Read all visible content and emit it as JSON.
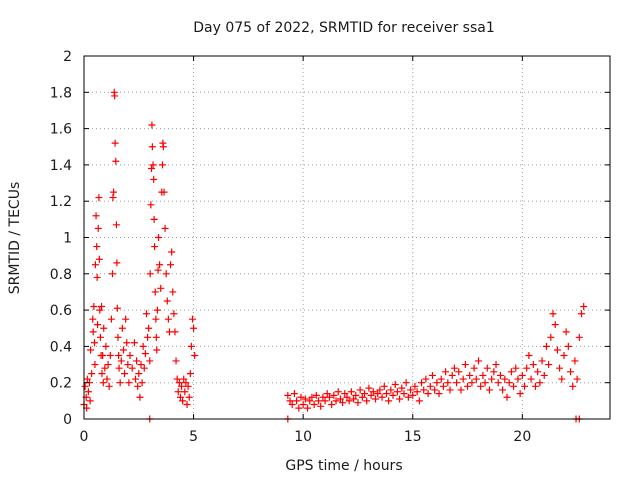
{
  "chart_data": {
    "type": "scatter",
    "title": "Day 075 of 2022, SRMTID for receiver ssa1",
    "xlabel": "GPS time / hours",
    "ylabel": "SRMTID / TECUs",
    "xlim": [
      0,
      24
    ],
    "ylim": [
      0,
      2
    ],
    "xticks": [
      0,
      5,
      10,
      15,
      20
    ],
    "yticks": [
      0,
      0.2,
      0.4,
      0.6,
      0.8,
      1,
      1.2,
      1.4,
      1.6,
      1.8,
      2
    ],
    "ytick_labels": [
      "0",
      "0.2",
      "0.4",
      "0.6",
      "0.8",
      "1",
      "1.2",
      "1.4",
      "1.6",
      "1.8",
      "2"
    ],
    "grid": true,
    "colors": {
      "series": "#ff0000",
      "grid": "#a0a0a0",
      "axis": "#000000"
    },
    "series": [
      {
        "name": "SRMTID",
        "marker": "plus",
        "points": [
          [
            0.0,
            0.08
          ],
          [
            0.05,
            0.18
          ],
          [
            0.1,
            0.12
          ],
          [
            0.12,
            0.06
          ],
          [
            0.15,
            0.22
          ],
          [
            0.2,
            0.15
          ],
          [
            0.25,
            0.2
          ],
          [
            0.28,
            0.1
          ],
          [
            0.3,
            0.38
          ],
          [
            0.35,
            0.25
          ],
          [
            0.4,
            0.55
          ],
          [
            0.42,
            0.48
          ],
          [
            0.45,
            0.62
          ],
          [
            0.48,
            0.42
          ],
          [
            0.5,
            0.3
          ],
          [
            0.52,
            0.85
          ],
          [
            0.55,
            1.12
          ],
          [
            0.58,
            0.95
          ],
          [
            0.6,
            0.78
          ],
          [
            0.62,
            0.52
          ],
          [
            0.65,
            1.05
          ],
          [
            0.68,
            1.22
          ],
          [
            0.7,
            0.88
          ],
          [
            0.72,
            0.6
          ],
          [
            0.75,
            0.45
          ],
          [
            0.78,
            0.35
          ],
          [
            0.8,
            0.62
          ],
          [
            0.82,
            0.25
          ],
          [
            0.85,
            0.35
          ],
          [
            0.88,
            0.2
          ],
          [
            0.9,
            0.5
          ],
          [
            0.95,
            0.28
          ],
          [
            1.0,
            0.4
          ],
          [
            1.05,
            0.22
          ],
          [
            1.1,
            0.3
          ],
          [
            1.15,
            0.18
          ],
          [
            1.2,
            0.35
          ],
          [
            1.25,
            0.55
          ],
          [
            1.3,
            0.8
          ],
          [
            1.32,
            1.22
          ],
          [
            1.35,
            1.25
          ],
          [
            1.38,
            1.8
          ],
          [
            1.4,
            1.78
          ],
          [
            1.42,
            1.52
          ],
          [
            1.45,
            1.42
          ],
          [
            1.48,
            1.07
          ],
          [
            1.5,
            0.86
          ],
          [
            1.52,
            0.61
          ],
          [
            1.55,
            0.45
          ],
          [
            1.58,
            0.35
          ],
          [
            1.6,
            0.28
          ],
          [
            1.65,
            0.2
          ],
          [
            1.7,
            0.32
          ],
          [
            1.75,
            0.5
          ],
          [
            1.8,
            0.38
          ],
          [
            1.85,
            0.25
          ],
          [
            1.9,
            0.55
          ],
          [
            1.95,
            0.42
          ],
          [
            2.0,
            0.3
          ],
          [
            2.05,
            0.2
          ],
          [
            2.1,
            0.35
          ],
          [
            2.2,
            0.28
          ],
          [
            2.3,
            0.42
          ],
          [
            2.35,
            0.22
          ],
          [
            2.4,
            0.32
          ],
          [
            2.45,
            0.18
          ],
          [
            2.5,
            0.25
          ],
          [
            2.55,
            0.12
          ],
          [
            2.6,
            0.3
          ],
          [
            2.65,
            0.2
          ],
          [
            2.7,
            0.4
          ],
          [
            2.75,
            0.28
          ],
          [
            2.8,
            0.36
          ],
          [
            2.85,
            0.58
          ],
          [
            2.9,
            0.45
          ],
          [
            2.95,
            0.5
          ],
          [
            3.0,
            0.32
          ],
          [
            3.02,
            0.8
          ],
          [
            3.05,
            1.18
          ],
          [
            3.08,
            1.38
          ],
          [
            3.1,
            1.62
          ],
          [
            3.12,
            1.5
          ],
          [
            3.15,
            1.4
          ],
          [
            3.18,
            1.32
          ],
          [
            3.2,
            1.1
          ],
          [
            3.22,
            0.95
          ],
          [
            3.25,
            0.7
          ],
          [
            3.28,
            0.55
          ],
          [
            3.3,
            0.45
          ],
          [
            3.32,
            0.38
          ],
          [
            3.35,
            0.6
          ],
          [
            3.38,
            0.82
          ],
          [
            3.4,
            1.0
          ],
          [
            3.45,
            0.85
          ],
          [
            3.5,
            0.72
          ],
          [
            3.55,
            1.25
          ],
          [
            3.58,
            1.4
          ],
          [
            3.6,
            1.52
          ],
          [
            3.62,
            1.5
          ],
          [
            3.65,
            1.25
          ],
          [
            3.7,
            1.05
          ],
          [
            3.75,
            0.8
          ],
          [
            3.8,
            0.65
          ],
          [
            3.85,
            0.55
          ],
          [
            3.9,
            0.48
          ],
          [
            3.95,
            0.85
          ],
          [
            4.0,
            0.92
          ],
          [
            4.05,
            0.7
          ],
          [
            4.1,
            0.58
          ],
          [
            4.15,
            0.48
          ],
          [
            4.2,
            0.32
          ],
          [
            4.25,
            0.22
          ],
          [
            4.3,
            0.15
          ],
          [
            4.35,
            0.2
          ],
          [
            4.4,
            0.12
          ],
          [
            4.45,
            0.18
          ],
          [
            4.5,
            0.1
          ],
          [
            4.55,
            0.22
          ],
          [
            4.6,
            0.15
          ],
          [
            4.65,
            0.2
          ],
          [
            4.7,
            0.08
          ],
          [
            4.75,
            0.18
          ],
          [
            4.8,
            0.12
          ],
          [
            4.85,
            0.25
          ],
          [
            4.9,
            0.4
          ],
          [
            4.95,
            0.55
          ],
          [
            5.0,
            0.5
          ],
          [
            5.05,
            0.35
          ],
          [
            9.3,
            0.13
          ],
          [
            9.4,
            0.1
          ],
          [
            9.5,
            0.08
          ],
          [
            9.6,
            0.14
          ],
          [
            9.7,
            0.1
          ],
          [
            9.8,
            0.06
          ],
          [
            9.9,
            0.12
          ],
          [
            10.0,
            0.08
          ],
          [
            10.1,
            0.11
          ],
          [
            10.2,
            0.06
          ],
          [
            10.3,
            0.1
          ],
          [
            10.4,
            0.12
          ],
          [
            10.5,
            0.08
          ],
          [
            10.6,
            0.13
          ],
          [
            10.7,
            0.1
          ],
          [
            10.8,
            0.07
          ],
          [
            10.9,
            0.12
          ],
          [
            11.0,
            0.1
          ],
          [
            11.1,
            0.14
          ],
          [
            11.2,
            0.12
          ],
          [
            11.3,
            0.08
          ],
          [
            11.4,
            0.13
          ],
          [
            11.5,
            0.1
          ],
          [
            11.6,
            0.15
          ],
          [
            11.7,
            0.11
          ],
          [
            11.8,
            0.09
          ],
          [
            11.9,
            0.14
          ],
          [
            12.0,
            0.12
          ],
          [
            12.1,
            0.1
          ],
          [
            12.2,
            0.15
          ],
          [
            12.3,
            0.11
          ],
          [
            12.4,
            0.13
          ],
          [
            12.5,
            0.09
          ],
          [
            12.6,
            0.16
          ],
          [
            12.7,
            0.12
          ],
          [
            12.8,
            0.14
          ],
          [
            12.9,
            0.1
          ],
          [
            13.0,
            0.17
          ],
          [
            13.1,
            0.13
          ],
          [
            13.2,
            0.15
          ],
          [
            13.3,
            0.11
          ],
          [
            13.4,
            0.14
          ],
          [
            13.5,
            0.16
          ],
          [
            13.6,
            0.12
          ],
          [
            13.7,
            0.18
          ],
          [
            13.8,
            0.14
          ],
          [
            13.9,
            0.1
          ],
          [
            14.0,
            0.16
          ],
          [
            14.1,
            0.13
          ],
          [
            14.2,
            0.19
          ],
          [
            14.3,
            0.15
          ],
          [
            14.4,
            0.11
          ],
          [
            14.5,
            0.17
          ],
          [
            14.6,
            0.14
          ],
          [
            14.7,
            0.2
          ],
          [
            14.8,
            0.12
          ],
          [
            14.9,
            0.16
          ],
          [
            15.0,
            0.13
          ],
          [
            15.1,
            0.18
          ],
          [
            15.2,
            0.15
          ],
          [
            15.3,
            0.1
          ],
          [
            15.4,
            0.2
          ],
          [
            15.5,
            0.16
          ],
          [
            15.6,
            0.22
          ],
          [
            15.7,
            0.14
          ],
          [
            15.8,
            0.18
          ],
          [
            15.9,
            0.24
          ],
          [
            16.0,
            0.16
          ],
          [
            16.1,
            0.2
          ],
          [
            16.2,
            0.14
          ],
          [
            16.3,
            0.22
          ],
          [
            16.4,
            0.18
          ],
          [
            16.5,
            0.26
          ],
          [
            16.6,
            0.2
          ],
          [
            16.7,
            0.16
          ],
          [
            16.8,
            0.24
          ],
          [
            16.9,
            0.28
          ],
          [
            17.0,
            0.2
          ],
          [
            17.1,
            0.26
          ],
          [
            17.2,
            0.16
          ],
          [
            17.3,
            0.22
          ],
          [
            17.4,
            0.3
          ],
          [
            17.5,
            0.18
          ],
          [
            17.6,
            0.24
          ],
          [
            17.7,
            0.2
          ],
          [
            17.8,
            0.28
          ],
          [
            17.9,
            0.22
          ],
          [
            18.0,
            0.32
          ],
          [
            18.1,
            0.18
          ],
          [
            18.2,
            0.24
          ],
          [
            18.3,
            0.2
          ],
          [
            18.4,
            0.28
          ],
          [
            18.5,
            0.16
          ],
          [
            18.6,
            0.22
          ],
          [
            18.7,
            0.26
          ],
          [
            18.8,
            0.3
          ],
          [
            18.9,
            0.2
          ],
          [
            19.0,
            0.24
          ],
          [
            19.1,
            0.16
          ],
          [
            19.2,
            0.22
          ],
          [
            19.3,
            0.12
          ],
          [
            19.4,
            0.2
          ],
          [
            19.5,
            0.26
          ],
          [
            19.6,
            0.18
          ],
          [
            19.7,
            0.28
          ],
          [
            19.8,
            0.22
          ],
          [
            19.9,
            0.14
          ],
          [
            20.0,
            0.24
          ],
          [
            20.1,
            0.18
          ],
          [
            20.2,
            0.28
          ],
          [
            20.3,
            0.35
          ],
          [
            20.4,
            0.22
          ],
          [
            20.5,
            0.3
          ],
          [
            20.6,
            0.18
          ],
          [
            20.7,
            0.26
          ],
          [
            20.8,
            0.2
          ],
          [
            20.9,
            0.32
          ],
          [
            21.0,
            0.24
          ],
          [
            21.1,
            0.4
          ],
          [
            21.2,
            0.3
          ],
          [
            21.3,
            0.45
          ],
          [
            21.4,
            0.58
          ],
          [
            21.5,
            0.52
          ],
          [
            21.6,
            0.38
          ],
          [
            21.7,
            0.28
          ],
          [
            21.8,
            0.22
          ],
          [
            21.9,
            0.35
          ],
          [
            22.0,
            0.48
          ],
          [
            22.1,
            0.4
          ],
          [
            22.2,
            0.26
          ],
          [
            22.3,
            0.18
          ],
          [
            22.4,
            0.32
          ],
          [
            22.5,
            0.22
          ],
          [
            22.6,
            0.45
          ],
          [
            22.7,
            0.58
          ],
          [
            22.8,
            0.62
          ],
          [
            22.45,
            0.0
          ],
          [
            22.6,
            0.0
          ],
          [
            9.3,
            0.0
          ],
          [
            3.0,
            0.0
          ]
        ]
      }
    ]
  }
}
